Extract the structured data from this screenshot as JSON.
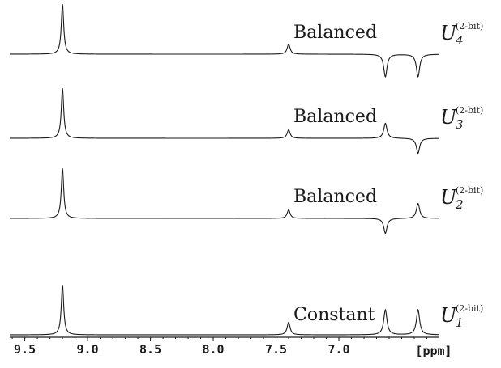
{
  "chart_data": {
    "type": "line",
    "xlabel": "[ppm]",
    "xlim": [
      9.62,
      6.2
    ],
    "x_reversed": true,
    "xticks": [
      "9.5",
      "9.0",
      "8.5",
      "8.0",
      "7.5",
      "7.0"
    ],
    "peak_positions_ppm": [
      9.2,
      7.4,
      6.63,
      6.37
    ],
    "series": [
      {
        "label": "Balanced",
        "operator": "U",
        "operator_subscript": "4",
        "operator_superscript": "(2-bit)",
        "peaks": [
          1.0,
          0.2,
          -0.45,
          -0.45
        ]
      },
      {
        "label": "Balanced",
        "operator": "U",
        "operator_subscript": "3",
        "operator_superscript": "(2-bit)",
        "peaks": [
          1.0,
          0.17,
          0.3,
          -0.3
        ]
      },
      {
        "label": "Balanced",
        "operator": "U",
        "operator_subscript": "2",
        "operator_superscript": "(2-bit)",
        "peaks": [
          1.0,
          0.17,
          -0.3,
          0.3
        ]
      },
      {
        "label": "Constant",
        "operator": "U",
        "operator_subscript": "1",
        "operator_superscript": "(2-bit)",
        "peaks": [
          1.0,
          0.25,
          0.5,
          0.5
        ]
      }
    ]
  }
}
